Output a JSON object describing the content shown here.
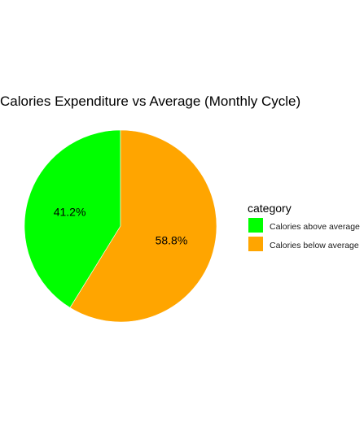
{
  "chart_data": {
    "type": "pie",
    "title": "Calories Expenditure vs Average (Monthly Cycle)",
    "legend": {
      "title": "category",
      "position": "right"
    },
    "slices": [
      {
        "category": "Calories above average",
        "value": 41.2,
        "label": "41.2%",
        "color": "#00ff00"
      },
      {
        "category": "Calories below average",
        "value": 58.8,
        "label": "58.8%",
        "color": "#ffa500"
      }
    ]
  }
}
